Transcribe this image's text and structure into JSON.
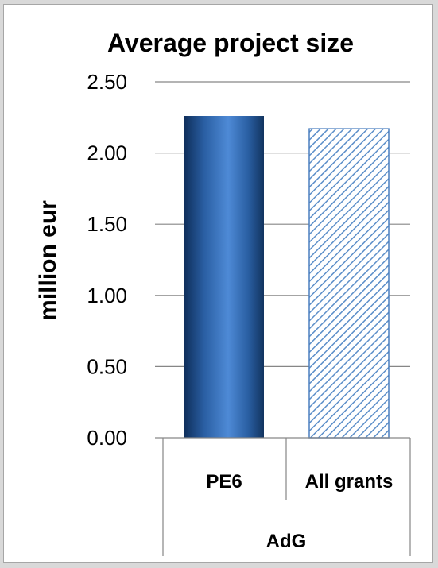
{
  "chart_data": {
    "type": "bar",
    "title": "Average project size",
    "ylabel": "million eur",
    "xlabel": "",
    "ylim": [
      0,
      2.5
    ],
    "yticks": [
      "0.00",
      "0.50",
      "1.00",
      "1.50",
      "2.00",
      "2.50"
    ],
    "grid": true,
    "categories": [
      "PE6",
      "All grants"
    ],
    "group_label": "AdG",
    "values": [
      2.26,
      2.17
    ],
    "colors": {
      "PE6": "#2e6bb3",
      "All grants": "#9dc3e6",
      "hatch_line": "#4a7fbf",
      "grid": "#868686"
    }
  }
}
